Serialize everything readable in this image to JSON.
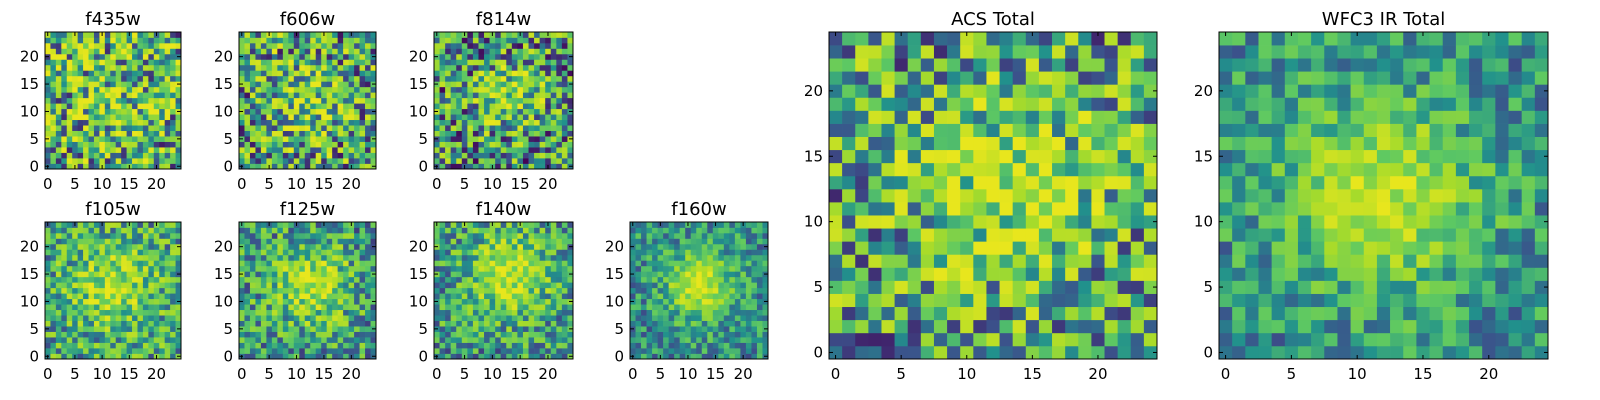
{
  "palette": [
    "#440154",
    "#3b528b",
    "#21918c",
    "#5ec962",
    "#a6db2b",
    "#e8e61d"
  ],
  "chart_data": [
    {
      "type": "heatmap",
      "title": "f435w",
      "grid": [
        25,
        25
      ],
      "xticks": [
        0,
        5,
        10,
        15,
        20
      ],
      "yticks": [
        0,
        5,
        10,
        15,
        20
      ],
      "seed": 11,
      "blob": {
        "cx": 12,
        "cy": 12,
        "sigma": 6,
        "amp": 0.15
      },
      "noise": 1.0,
      "base": 0.55
    },
    {
      "type": "heatmap",
      "title": "f606w",
      "grid": [
        25,
        25
      ],
      "xticks": [
        0,
        5,
        10,
        15,
        20
      ],
      "yticks": [
        0,
        5,
        10,
        15,
        20
      ],
      "seed": 23,
      "blob": {
        "cx": 12,
        "cy": 12,
        "sigma": 5,
        "amp": 0.25
      },
      "noise": 0.95,
      "base": 0.5
    },
    {
      "type": "heatmap",
      "title": "f814w",
      "grid": [
        25,
        25
      ],
      "xticks": [
        0,
        5,
        10,
        15,
        20
      ],
      "yticks": [
        0,
        5,
        10,
        15,
        20
      ],
      "seed": 37,
      "blob": {
        "cx": 13,
        "cy": 13,
        "sigma": 4,
        "amp": 0.35
      },
      "noise": 0.9,
      "base": 0.45
    },
    {
      "type": "heatmap",
      "title": "f105w",
      "grid": [
        25,
        25
      ],
      "xticks": [
        0,
        5,
        10,
        15,
        20
      ],
      "yticks": [
        0,
        5,
        10,
        15,
        20
      ],
      "seed": 41,
      "blob": {
        "cx": 12,
        "cy": 13,
        "sigma": 5,
        "amp": 0.35
      },
      "noise": 0.65,
      "base": 0.5
    },
    {
      "type": "heatmap",
      "title": "f125w",
      "grid": [
        25,
        25
      ],
      "xticks": [
        0,
        5,
        10,
        15,
        20
      ],
      "yticks": [
        0,
        5,
        10,
        15,
        20
      ],
      "seed": 53,
      "blob": {
        "cx": 13,
        "cy": 13,
        "sigma": 5,
        "amp": 0.4
      },
      "noise": 0.65,
      "base": 0.45
    },
    {
      "type": "heatmap",
      "title": "f140w",
      "grid": [
        25,
        25
      ],
      "xticks": [
        0,
        5,
        10,
        15,
        20
      ],
      "yticks": [
        0,
        5,
        10,
        15,
        20
      ],
      "seed": 67,
      "blob": {
        "cx": 13,
        "cy": 15,
        "sigma": 5,
        "amp": 0.45
      },
      "noise": 0.6,
      "base": 0.45
    },
    {
      "type": "heatmap",
      "title": "f160w",
      "grid": [
        25,
        25
      ],
      "xticks": [
        0,
        5,
        10,
        15,
        20
      ],
      "yticks": [
        0,
        5,
        10,
        15,
        20
      ],
      "seed": 79,
      "blob": {
        "cx": 12,
        "cy": 13,
        "sigma": 4,
        "amp": 0.55
      },
      "noise": 0.45,
      "base": 0.4
    },
    {
      "type": "heatmap",
      "title": "ACS Total",
      "grid": [
        25,
        25
      ],
      "xticks": [
        0,
        5,
        10,
        15,
        20
      ],
      "yticks": [
        0,
        5,
        10,
        15,
        20
      ],
      "seed": 97,
      "blob": {
        "cx": 13,
        "cy": 13,
        "sigma": 5,
        "amp": 0.35
      },
      "noise": 0.85,
      "base": 0.5
    },
    {
      "type": "heatmap",
      "title": "WFC3 IR Total",
      "grid": [
        25,
        25
      ],
      "xticks": [
        0,
        5,
        10,
        15,
        20
      ],
      "yticks": [
        0,
        5,
        10,
        15,
        20
      ],
      "seed": 131,
      "blob": {
        "cx": 12,
        "cy": 12,
        "sigma": 5,
        "amp": 0.5
      },
      "noise": 0.45,
      "base": 0.4
    }
  ]
}
